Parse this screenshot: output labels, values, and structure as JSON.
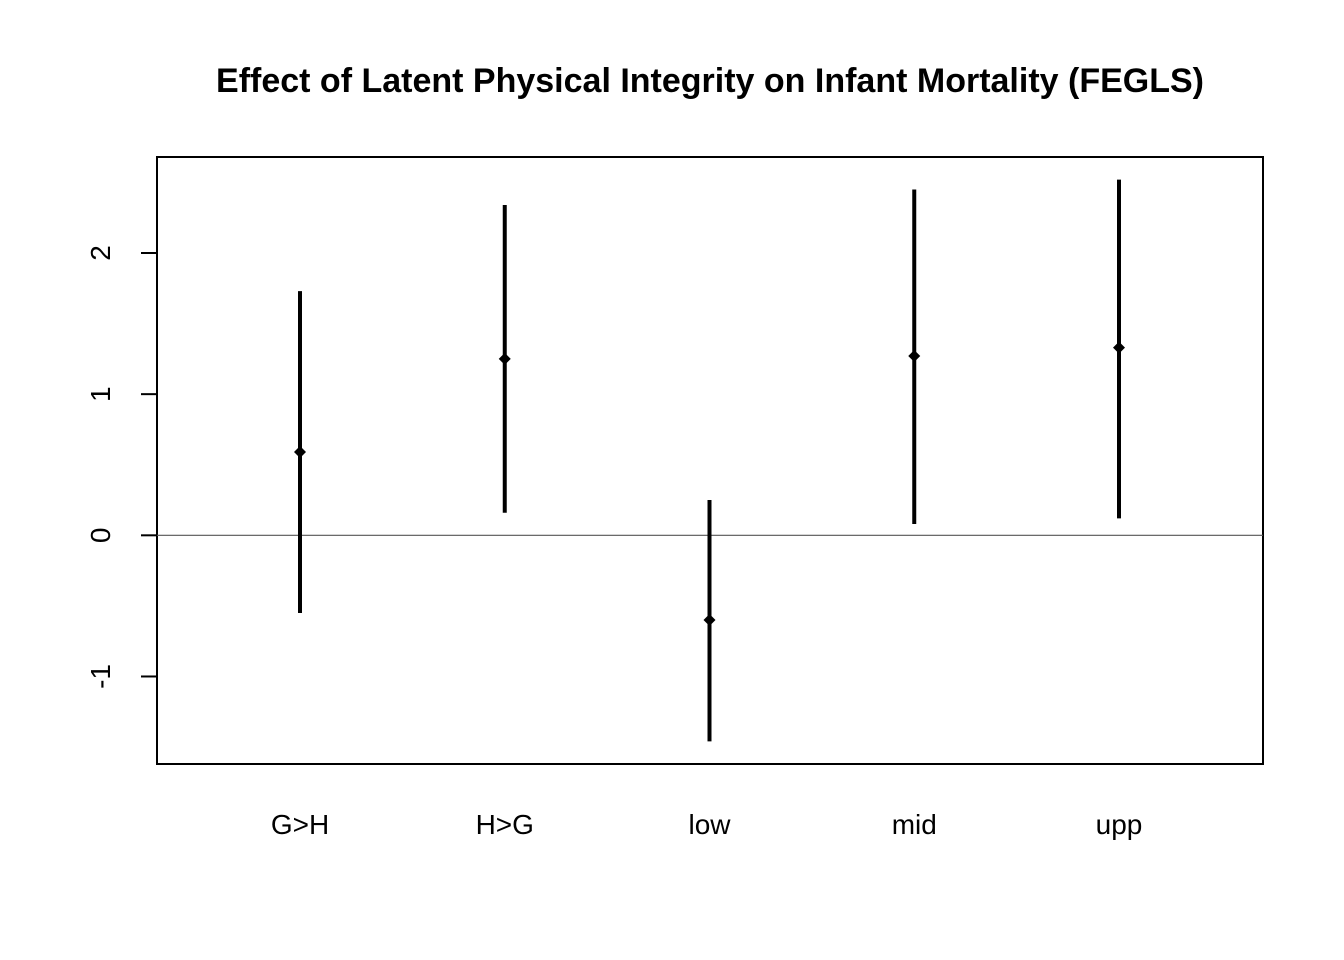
{
  "chart_data": {
    "type": "errorbar",
    "title": "Effect of Latent Physical Integrity on Infant Mortality (FEGLS)",
    "xlabel": "",
    "ylabel": "",
    "categories": [
      "G>H",
      "H>G",
      "low",
      "mid",
      "upp"
    ],
    "estimates": [
      0.59,
      1.25,
      -0.6,
      1.27,
      1.33
    ],
    "lower": [
      -0.55,
      0.16,
      -1.46,
      0.08,
      0.12
    ],
    "upper": [
      1.73,
      2.34,
      0.25,
      2.45,
      2.52
    ],
    "ylim": [
      -1.62,
      2.68
    ],
    "yticks": [
      -1,
      0,
      1,
      2
    ],
    "ytick_labels": [
      "-1",
      "0",
      "1",
      "2"
    ],
    "reference_line": 0,
    "grid": false,
    "colors": {
      "marks": "#000000",
      "reference_line": "#555555",
      "frame": "#000000"
    }
  }
}
